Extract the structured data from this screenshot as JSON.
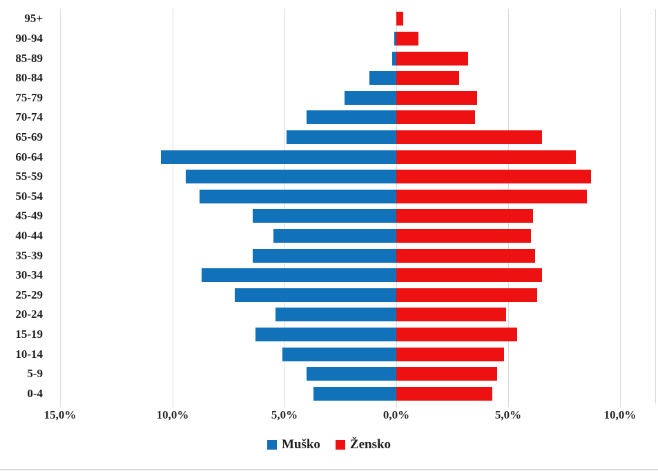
{
  "chart_data": {
    "type": "bar",
    "variant": "population-pyramid",
    "title": "",
    "xlabel": "",
    "ylabel": "",
    "grid": true,
    "legend_position": "bottom",
    "value_unit": "percent-of-each-sex",
    "categories": [
      "95+",
      "90-94",
      "85-89",
      "80-84",
      "75-79",
      "70-74",
      "65-69",
      "60-64",
      "55-59",
      "50-54",
      "45-49",
      "40-44",
      "35-39",
      "30-34",
      "25-29",
      "20-24",
      "15-19",
      "10-14",
      "5-9",
      "0-4"
    ],
    "series": [
      {
        "name": "Muško",
        "direction": "left",
        "color": "#1172BA",
        "values": [
          0.0,
          0.1,
          0.2,
          1.2,
          2.3,
          4.0,
          4.9,
          10.5,
          9.4,
          8.8,
          6.4,
          5.5,
          6.4,
          8.7,
          7.2,
          5.4,
          6.3,
          5.1,
          4.0,
          3.7
        ]
      },
      {
        "name": "Žensko",
        "direction": "right",
        "color": "#EE1111",
        "values": [
          0.3,
          1.0,
          3.2,
          2.8,
          3.6,
          3.5,
          6.5,
          8.0,
          8.7,
          8.5,
          6.1,
          6.0,
          6.2,
          6.5,
          6.3,
          4.9,
          5.4,
          4.8,
          4.5,
          4.3
        ]
      }
    ],
    "x_axis": {
      "tick_labels": [
        "15,0%",
        "10,0%",
        "5,0%",
        "0,0%",
        "5,0%",
        "10,0%"
      ],
      "tick_values": [
        -15,
        -10,
        -5,
        0,
        5,
        10
      ],
      "xlim": [
        -15,
        11.55
      ]
    },
    "colors": {
      "male": "#1172BA",
      "female": "#EE1111",
      "gridline": "#d9d9d9",
      "label_text": "#1f1f1f"
    }
  }
}
